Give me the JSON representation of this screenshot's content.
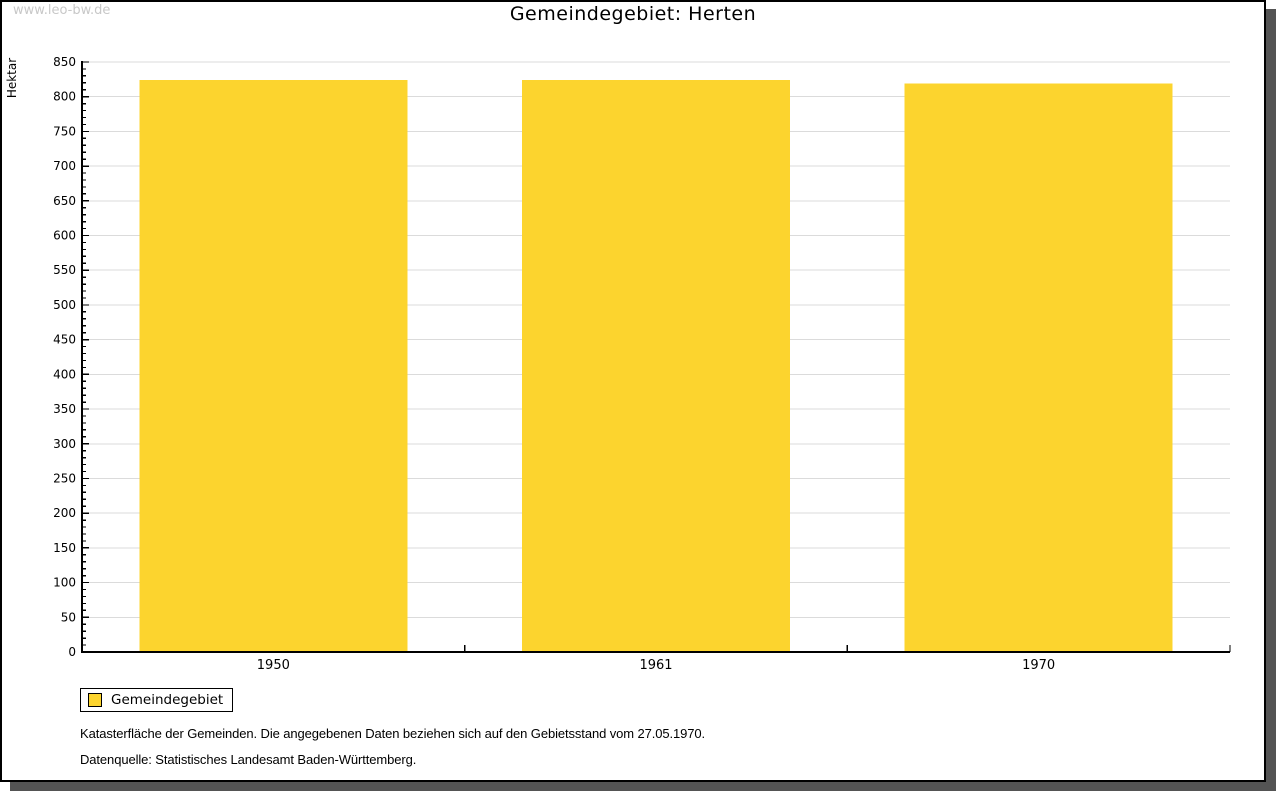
{
  "watermark": "www.leo-bw.de",
  "title": "Gemeindegebiet: Herten",
  "chart_data": {
    "type": "bar",
    "title": "Gemeindegebiet: Herten",
    "categories": [
      "1950",
      "1961",
      "1970"
    ],
    "series": [
      {
        "name": "Gemeindegebiet",
        "values": [
          824,
          824,
          819
        ],
        "color": "#FCD42E"
      }
    ],
    "xlabel": "",
    "ylabel": "Hektar",
    "ylim": [
      0,
      850
    ],
    "ytick_major": 50,
    "ytick_minor": 10,
    "grid": true,
    "legend_position": "bottom-left"
  },
  "legend": {
    "label": "Gemeindegebiet"
  },
  "footnotes": [
    "Katasterfläche der Gemeinden. Die angegebenen Daten beziehen sich auf den Gebietsstand vom 27.05.1970.",
    "Datenquelle: Statistisches Landesamt Baden-Württemberg."
  ],
  "colors": {
    "bar": "#FCD42E",
    "grid": "#DBDBDB",
    "axis": "#000000",
    "text": "#000000",
    "watermark": "#C8C8C8",
    "panel_border": "#000000",
    "shadow": "#545454",
    "background": "#FFFFFF"
  }
}
